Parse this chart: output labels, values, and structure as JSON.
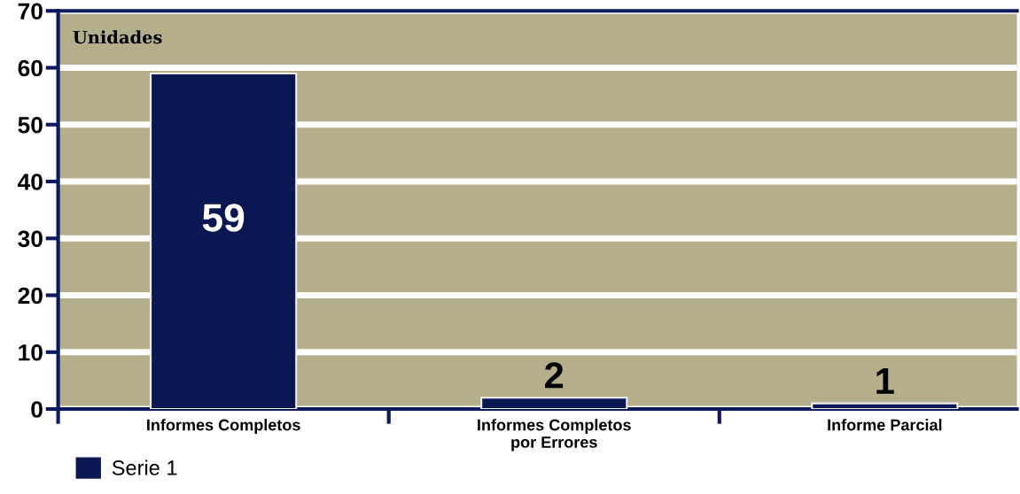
{
  "chart_data": {
    "type": "bar",
    "ylabel": "Unidades",
    "categories": [
      "Informes Completos",
      "Informes Completos\npor Errores",
      "Informe Parcial"
    ],
    "series": [
      {
        "name": "Serie 1",
        "color": "#0b1752",
        "values": [
          59,
          2,
          1
        ]
      }
    ],
    "ylim": [
      0,
      70
    ],
    "yticks": [
      0,
      10,
      20,
      30,
      40,
      50,
      60,
      70
    ],
    "grid": "y",
    "legend": "bottom left",
    "data_labels": true
  }
}
